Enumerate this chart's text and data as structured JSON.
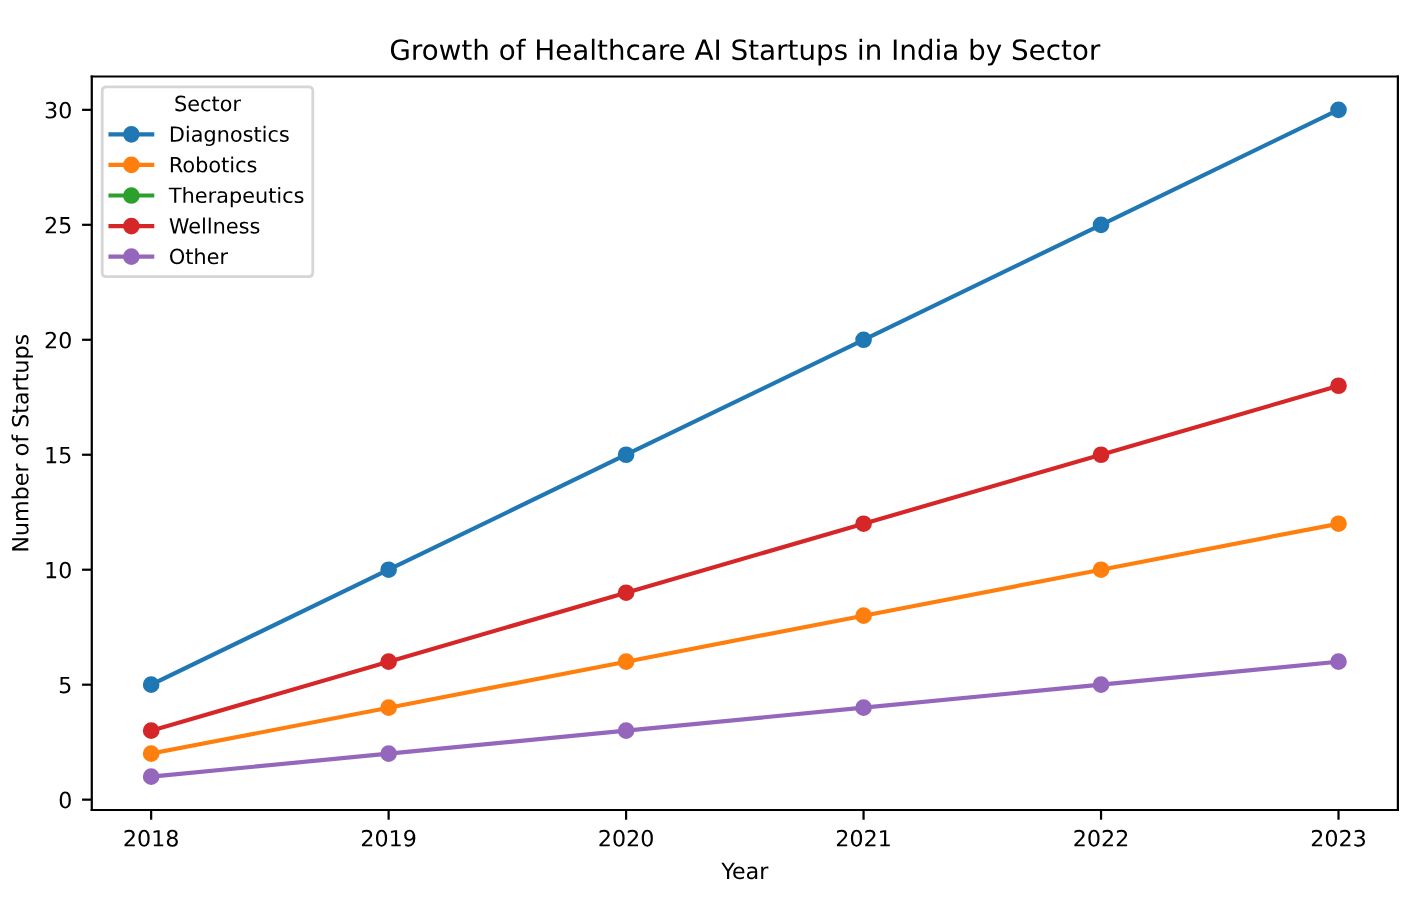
{
  "chart_data": {
    "type": "line",
    "title": "Growth of Healthcare AI Startups in India by Sector",
    "xlabel": "Year",
    "ylabel": "Number of Startups",
    "legend_title": "Sector",
    "x": [
      2018,
      2019,
      2020,
      2021,
      2022,
      2023
    ],
    "series": [
      {
        "name": "Diagnostics",
        "color": "#1f77b4",
        "values": [
          5,
          10,
          15,
          20,
          25,
          30
        ]
      },
      {
        "name": "Robotics",
        "color": "#ff7f0e",
        "values": [
          2,
          4,
          6,
          8,
          10,
          12
        ]
      },
      {
        "name": "Therapeutics",
        "color": "#2ca02c",
        "values": [
          null,
          null,
          null,
          null,
          null,
          null
        ]
      },
      {
        "name": "Wellness",
        "color": "#d62728",
        "values": [
          3,
          6,
          9,
          12,
          15,
          18
        ]
      },
      {
        "name": "Other",
        "color": "#9467bd",
        "values": [
          1,
          2,
          3,
          4,
          5,
          6
        ]
      }
    ],
    "xlim": [
      2017.75,
      2023.25
    ],
    "xticks": [
      2018,
      2019,
      2020,
      2021,
      2022,
      2023
    ],
    "ylim": [
      -0.45,
      31.45
    ],
    "yticks": [
      0,
      5,
      10,
      15,
      20,
      25,
      30
    ],
    "marker": "circle",
    "line_style": "solid",
    "legend": "top left",
    "grid": false
  }
}
